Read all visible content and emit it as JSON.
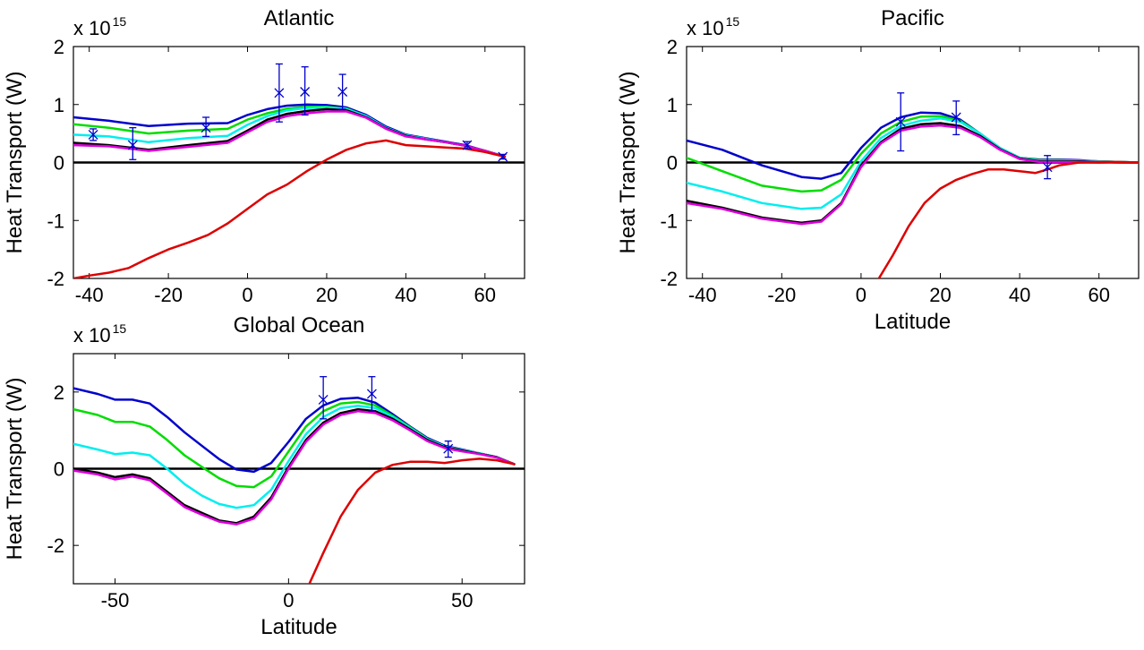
{
  "chart_data": [
    {
      "type": "line",
      "title": "Atlantic",
      "xlabel": "",
      "ylabel": "Heat Transport (W)",
      "y_multiplier": "x 10",
      "y_exponent": "15",
      "xlim": [
        -44,
        70
      ],
      "ylim": [
        -2,
        2
      ],
      "xticks": [
        -40,
        -20,
        0,
        20,
        40,
        60
      ],
      "yticks": [
        -2,
        -1,
        0,
        1,
        2
      ],
      "grid": false,
      "zero_line": true,
      "series": [
        {
          "color": "#0000cc",
          "x": [
            -44,
            -35,
            -25,
            -15,
            -5,
            0,
            5,
            10,
            15,
            20,
            25,
            30,
            35,
            40,
            45,
            50,
            55,
            60,
            65
          ],
          "y": [
            0.78,
            0.72,
            0.63,
            0.67,
            0.68,
            0.82,
            0.92,
            0.98,
            1.0,
            0.99,
            0.95,
            0.82,
            0.62,
            0.48,
            0.42,
            0.36,
            0.3,
            0.2,
            0.1
          ]
        },
        {
          "color": "#00dd00",
          "x": [
            -44,
            -35,
            -25,
            -15,
            -5,
            0,
            5,
            10,
            15,
            20,
            25,
            30,
            35,
            40,
            45,
            50,
            55,
            60,
            65
          ],
          "y": [
            0.66,
            0.6,
            0.5,
            0.55,
            0.58,
            0.74,
            0.85,
            0.93,
            0.96,
            0.96,
            0.93,
            0.8,
            0.6,
            0.47,
            0.41,
            0.35,
            0.29,
            0.2,
            0.1
          ]
        },
        {
          "color": "#00eeee",
          "x": [
            -44,
            -35,
            -25,
            -15,
            -5,
            0,
            5,
            10,
            15,
            20,
            25,
            30,
            35,
            40,
            45,
            50,
            55,
            60,
            65
          ],
          "y": [
            0.48,
            0.45,
            0.35,
            0.42,
            0.46,
            0.65,
            0.8,
            0.9,
            0.94,
            0.95,
            0.92,
            0.8,
            0.6,
            0.47,
            0.41,
            0.35,
            0.29,
            0.2,
            0.1
          ]
        },
        {
          "color": "#000000",
          "x": [
            -44,
            -35,
            -25,
            -15,
            -5,
            0,
            5,
            10,
            15,
            20,
            25,
            30,
            35,
            40,
            45,
            50,
            55,
            60,
            65
          ],
          "y": [
            0.34,
            0.3,
            0.22,
            0.3,
            0.37,
            0.55,
            0.74,
            0.84,
            0.89,
            0.92,
            0.9,
            0.78,
            0.59,
            0.46,
            0.4,
            0.35,
            0.29,
            0.2,
            0.1
          ]
        },
        {
          "color": "#dd00dd",
          "x": [
            -44,
            -35,
            -25,
            -15,
            -5,
            0,
            5,
            10,
            15,
            20,
            25,
            30,
            35,
            40,
            45,
            50,
            55,
            60,
            65
          ],
          "y": [
            0.3,
            0.28,
            0.2,
            0.27,
            0.34,
            0.52,
            0.7,
            0.8,
            0.85,
            0.88,
            0.88,
            0.77,
            0.58,
            0.45,
            0.4,
            0.35,
            0.29,
            0.2,
            0.1
          ]
        },
        {
          "color": "#dd0000",
          "x": [
            -44,
            -40,
            -35,
            -30,
            -25,
            -20,
            -15,
            -10,
            -5,
            0,
            5,
            10,
            15,
            20,
            25,
            30,
            35,
            40,
            45,
            50,
            55,
            60,
            65
          ],
          "y": [
            -2.0,
            -1.95,
            -1.9,
            -1.82,
            -1.65,
            -1.5,
            -1.38,
            -1.25,
            -1.05,
            -0.8,
            -0.55,
            -0.38,
            -0.15,
            0.05,
            0.22,
            0.33,
            0.38,
            0.3,
            0.28,
            0.26,
            0.24,
            0.18,
            0.1
          ]
        }
      ],
      "observations": [
        {
          "x": -39,
          "y": 0.48,
          "lo": 0.38,
          "hi": 0.58
        },
        {
          "x": -29,
          "y": 0.3,
          "lo": 0.05,
          "hi": 0.6
        },
        {
          "x": -10.5,
          "y": 0.6,
          "lo": 0.45,
          "hi": 0.78
        },
        {
          "x": 8,
          "y": 1.2,
          "lo": 0.7,
          "hi": 1.7
        },
        {
          "x": 14.5,
          "y": 1.22,
          "lo": 0.82,
          "hi": 1.65
        },
        {
          "x": 24,
          "y": 1.22,
          "lo": 0.92,
          "hi": 1.52
        },
        {
          "x": 55.5,
          "y": 0.3,
          "lo": 0.24,
          "hi": 0.36
        },
        {
          "x": 64.5,
          "y": 0.1,
          "lo": 0.06,
          "hi": 0.14
        }
      ]
    },
    {
      "type": "line",
      "title": "Pacific",
      "xlabel": "Latitude",
      "ylabel": "Heat Transport (W)",
      "y_multiplier": "x 10",
      "y_exponent": "15",
      "xlim": [
        -44,
        70
      ],
      "ylim": [
        -2,
        2
      ],
      "xticks": [
        -40,
        -20,
        0,
        20,
        40,
        60
      ],
      "yticks": [
        -2,
        -1,
        0,
        1,
        2
      ],
      "grid": false,
      "zero_line": true,
      "series": [
        {
          "color": "#0000cc",
          "x": [
            -44,
            -35,
            -25,
            -15,
            -10,
            -5,
            0,
            5,
            10,
            15,
            20,
            25,
            30,
            35,
            40,
            45,
            50,
            55,
            60,
            65,
            70
          ],
          "y": [
            0.38,
            0.22,
            -0.05,
            -0.25,
            -0.28,
            -0.18,
            0.25,
            0.6,
            0.78,
            0.86,
            0.85,
            0.74,
            0.5,
            0.25,
            0.08,
            0.05,
            0.05,
            0.04,
            0.02,
            0.01,
            0.0
          ]
        },
        {
          "color": "#00dd00",
          "x": [
            -44,
            -35,
            -25,
            -15,
            -10,
            -5,
            0,
            5,
            10,
            15,
            20,
            25,
            30,
            35,
            40,
            45,
            50,
            55,
            60,
            65,
            70
          ],
          "y": [
            0.08,
            -0.15,
            -0.4,
            -0.5,
            -0.48,
            -0.3,
            0.15,
            0.5,
            0.7,
            0.79,
            0.8,
            0.72,
            0.5,
            0.25,
            0.08,
            0.04,
            0.04,
            0.03,
            0.02,
            0.01,
            0.0
          ]
        },
        {
          "color": "#00eeee",
          "x": [
            -44,
            -35,
            -25,
            -15,
            -10,
            -5,
            0,
            5,
            10,
            15,
            20,
            25,
            30,
            35,
            40,
            45,
            50,
            55,
            60,
            65,
            70
          ],
          "y": [
            -0.35,
            -0.5,
            -0.7,
            -0.8,
            -0.78,
            -0.55,
            0.02,
            0.42,
            0.63,
            0.72,
            0.76,
            0.7,
            0.5,
            0.25,
            0.08,
            0.03,
            0.03,
            0.03,
            0.02,
            0.01,
            0.0
          ]
        },
        {
          "color": "#000000",
          "x": [
            -44,
            -35,
            -25,
            -15,
            -10,
            -5,
            0,
            5,
            10,
            15,
            20,
            25,
            30,
            35,
            40,
            45,
            50,
            55,
            60,
            65,
            70
          ],
          "y": [
            -0.66,
            -0.78,
            -0.95,
            -1.04,
            -1.0,
            -0.7,
            -0.05,
            0.35,
            0.58,
            0.66,
            0.68,
            0.63,
            0.46,
            0.23,
            0.07,
            0.02,
            0.02,
            0.02,
            0.01,
            0.0,
            0.0
          ]
        },
        {
          "color": "#dd00dd",
          "x": [
            -44,
            -35,
            -25,
            -15,
            -10,
            -5,
            0,
            5,
            10,
            15,
            20,
            25,
            30,
            35,
            40,
            45,
            50,
            55,
            60,
            65,
            70
          ],
          "y": [
            -0.7,
            -0.8,
            -0.97,
            -1.06,
            -1.02,
            -0.72,
            -0.08,
            0.33,
            0.55,
            0.62,
            0.64,
            0.6,
            0.44,
            0.22,
            0.06,
            0.01,
            0.01,
            0.01,
            0.01,
            0.0,
            0.0
          ]
        },
        {
          "color": "#dd0000",
          "x": [
            4.5,
            8,
            12,
            16,
            20,
            24,
            28,
            32,
            36,
            40,
            44,
            47,
            50,
            55,
            60,
            65,
            70
          ],
          "y": [
            -2.0,
            -1.6,
            -1.1,
            -0.7,
            -0.45,
            -0.3,
            -0.2,
            -0.12,
            -0.12,
            -0.15,
            -0.18,
            -0.12,
            -0.05,
            0.0,
            0.01,
            0.01,
            0.0
          ]
        }
      ],
      "observations": [
        {
          "x": 10,
          "y": 0.7,
          "lo": 0.2,
          "hi": 1.2
        },
        {
          "x": 24,
          "y": 0.78,
          "lo": 0.48,
          "hi": 1.06
        },
        {
          "x": 47,
          "y": -0.08,
          "lo": -0.28,
          "hi": 0.12
        }
      ]
    },
    {
      "type": "line",
      "title": "Global Ocean",
      "xlabel": "Latitude",
      "ylabel": "Heat Transport (W)",
      "y_multiplier": "x 10",
      "y_exponent": "15",
      "xlim": [
        -62,
        68
      ],
      "ylim": [
        -3,
        3
      ],
      "xticks": [
        -50,
        0,
        50
      ],
      "yticks": [
        -2,
        0,
        2
      ],
      "grid": false,
      "zero_line": true,
      "series": [
        {
          "color": "#0000cc",
          "x": [
            -62,
            -55,
            -50,
            -45,
            -40,
            -35,
            -30,
            -25,
            -20,
            -15,
            -10,
            -5,
            0,
            5,
            10,
            15,
            20,
            25,
            30,
            35,
            40,
            45,
            50,
            55,
            60,
            65
          ],
          "y": [
            2.1,
            1.95,
            1.8,
            1.8,
            1.7,
            1.35,
            0.95,
            0.6,
            0.25,
            -0.02,
            -0.08,
            0.15,
            0.7,
            1.3,
            1.65,
            1.82,
            1.85,
            1.72,
            1.42,
            1.1,
            0.8,
            0.6,
            0.5,
            0.4,
            0.3,
            0.12
          ]
        },
        {
          "color": "#00dd00",
          "x": [
            -62,
            -55,
            -50,
            -45,
            -40,
            -35,
            -30,
            -25,
            -20,
            -15,
            -10,
            -5,
            0,
            5,
            10,
            15,
            20,
            25,
            30,
            35,
            40,
            45,
            50,
            55,
            60,
            65
          ],
          "y": [
            1.55,
            1.4,
            1.22,
            1.22,
            1.1,
            0.75,
            0.35,
            0.05,
            -0.25,
            -0.45,
            -0.48,
            -0.2,
            0.45,
            1.1,
            1.5,
            1.7,
            1.74,
            1.65,
            1.38,
            1.08,
            0.78,
            0.58,
            0.48,
            0.4,
            0.3,
            0.12
          ]
        },
        {
          "color": "#00eeee",
          "x": [
            -62,
            -55,
            -50,
            -45,
            -40,
            -35,
            -30,
            -25,
            -20,
            -15,
            -10,
            -5,
            0,
            5,
            10,
            15,
            20,
            25,
            30,
            35,
            40,
            45,
            50,
            55,
            60,
            65
          ],
          "y": [
            0.65,
            0.5,
            0.38,
            0.42,
            0.35,
            0.0,
            -0.4,
            -0.7,
            -0.92,
            -1.02,
            -0.95,
            -0.55,
            0.2,
            0.9,
            1.35,
            1.58,
            1.64,
            1.58,
            1.35,
            1.06,
            0.77,
            0.58,
            0.48,
            0.4,
            0.3,
            0.12
          ]
        },
        {
          "color": "#000000",
          "x": [
            -62,
            -55,
            -50,
            -45,
            -40,
            -35,
            -30,
            -25,
            -20,
            -15,
            -10,
            -5,
            0,
            5,
            10,
            15,
            20,
            25,
            30,
            35,
            40,
            45,
            50,
            55,
            60,
            65
          ],
          "y": [
            0.0,
            -0.1,
            -0.22,
            -0.15,
            -0.25,
            -0.6,
            -0.95,
            -1.15,
            -1.35,
            -1.42,
            -1.25,
            -0.75,
            0.05,
            0.75,
            1.2,
            1.45,
            1.55,
            1.5,
            1.3,
            1.03,
            0.75,
            0.56,
            0.47,
            0.39,
            0.3,
            0.12
          ]
        },
        {
          "color": "#dd00dd",
          "x": [
            -62,
            -55,
            -50,
            -45,
            -40,
            -35,
            -30,
            -25,
            -20,
            -15,
            -10,
            -5,
            0,
            5,
            10,
            15,
            20,
            25,
            30,
            35,
            40,
            45,
            50,
            55,
            60,
            65
          ],
          "y": [
            -0.05,
            -0.15,
            -0.28,
            -0.2,
            -0.3,
            -0.65,
            -1.0,
            -1.2,
            -1.38,
            -1.45,
            -1.3,
            -0.8,
            0.0,
            0.7,
            1.15,
            1.4,
            1.5,
            1.45,
            1.26,
            1.0,
            0.72,
            0.54,
            0.45,
            0.38,
            0.29,
            0.12
          ]
        },
        {
          "color": "#dd0000",
          "x": [
            6,
            10,
            15,
            20,
            25,
            30,
            35,
            40,
            45,
            50,
            55,
            60,
            65
          ],
          "y": [
            -3.0,
            -2.2,
            -1.25,
            -0.55,
            -0.1,
            0.1,
            0.18,
            0.18,
            0.15,
            0.22,
            0.26,
            0.22,
            0.12
          ]
        }
      ],
      "observations": [
        {
          "x": 10,
          "y": 1.8,
          "lo": 1.3,
          "hi": 2.4
        },
        {
          "x": 24,
          "y": 1.95,
          "lo": 1.5,
          "hi": 2.4
        },
        {
          "x": 46,
          "y": 0.52,
          "lo": 0.3,
          "hi": 0.72
        }
      ]
    }
  ]
}
